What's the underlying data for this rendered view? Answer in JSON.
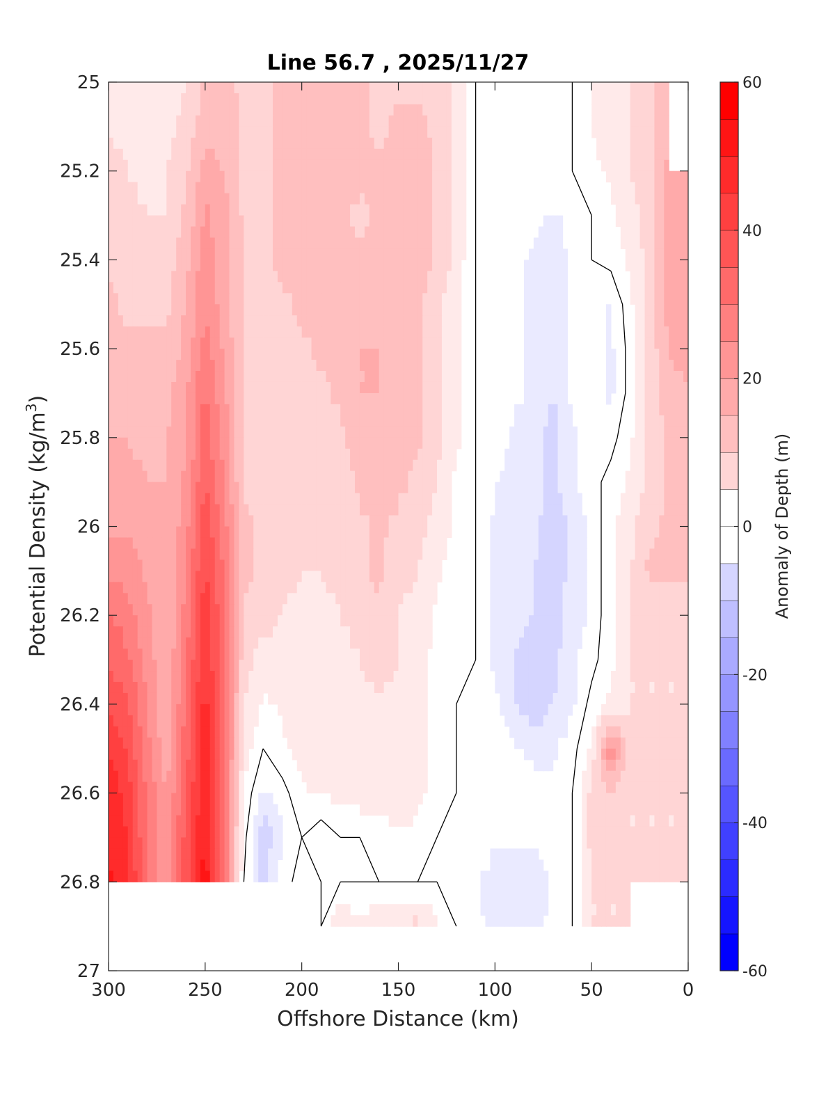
{
  "chart_data": {
    "type": "heatmap",
    "subtype": "filled-contour",
    "title": "Line 56.7 , 2025/11/27",
    "xlabel": "Offshore Distance (km)",
    "ylabel_main": "Potential Density (kg/m",
    "ylabel_sup": "3",
    "ylabel_close": ")",
    "xlim": [
      300,
      0
    ],
    "x_reversed": true,
    "ylim": [
      25,
      27
    ],
    "y_reversed": true,
    "x_ticks": [
      300,
      250,
      200,
      150,
      100,
      50,
      0
    ],
    "x_tick_labels": [
      "300",
      "250",
      "200",
      "150",
      "100",
      "50",
      "0"
    ],
    "y_ticks": [
      25,
      25.2,
      25.4,
      25.6,
      25.8,
      26,
      26.2,
      26.4,
      26.6,
      26.8,
      27
    ],
    "y_tick_labels": [
      "25",
      "25.2",
      "25.4",
      "25.6",
      "25.8",
      "26",
      "26.2",
      "26.4",
      "26.6",
      "26.8",
      "27"
    ],
    "colorbar": {
      "label": "Anomaly of Depth (m)",
      "range": [
        -60,
        60
      ],
      "level_step": 5,
      "ticks": [
        60,
        40,
        20,
        0,
        -20,
        -40,
        -60
      ],
      "tick_labels": [
        "60",
        "40",
        "20",
        "0",
        "-20",
        "-40",
        "-60"
      ],
      "colormap": "blue-white-red",
      "high_color": "#ff0000",
      "low_color": "#0000ff",
      "mid_color": "#ffffff"
    },
    "zero_contour_color": "#000000",
    "x_nodes": [
      300,
      290,
      280,
      270,
      260,
      250,
      240,
      230,
      220,
      210,
      200,
      190,
      180,
      170,
      160,
      150,
      140,
      130,
      120,
      110,
      100,
      90,
      80,
      70,
      60,
      50,
      40,
      30,
      20,
      10,
      0
    ],
    "y_nodes": [
      25,
      25.1,
      25.2,
      25.3,
      25.4,
      25.5,
      25.6,
      25.7,
      25.8,
      25.9,
      26,
      26.1,
      26.2,
      26.3,
      26.4,
      26.5,
      26.6,
      26.7,
      26.8,
      26.9
    ],
    "values": [
      [
        10,
        8,
        6,
        6,
        10,
        16,
        16,
        14,
        14,
        16,
        18,
        18,
        16,
        16,
        14,
        14,
        14,
        14,
        8,
        0,
        0,
        0,
        0,
        0,
        0,
        5,
        8,
        10,
        14,
        20,
        null
      ],
      [
        10,
        8,
        6,
        8,
        12,
        18,
        18,
        14,
        14,
        16,
        18,
        18,
        16,
        16,
        14,
        16,
        16,
        14,
        8,
        0,
        0,
        0,
        0,
        0,
        0,
        5,
        8,
        10,
        14,
        18,
        null
      ],
      [
        12,
        10,
        8,
        10,
        14,
        22,
        20,
        14,
        14,
        16,
        18,
        18,
        18,
        16,
        16,
        18,
        18,
        14,
        8,
        0,
        0,
        0,
        0,
        0,
        0,
        4,
        6,
        10,
        14,
        22,
        24
      ],
      [
        12,
        12,
        10,
        10,
        16,
        26,
        22,
        14,
        14,
        16,
        18,
        18,
        16,
        14,
        16,
        18,
        18,
        14,
        8,
        0,
        0,
        0,
        -3,
        -6,
        -3,
        0,
        4,
        8,
        12,
        22,
        24
      ],
      [
        14,
        14,
        12,
        12,
        18,
        28,
        22,
        14,
        14,
        16,
        18,
        20,
        18,
        16,
        18,
        18,
        18,
        14,
        8,
        0,
        0,
        -4,
        -6,
        -8,
        -4,
        0,
        2,
        6,
        12,
        22,
        24
      ],
      [
        16,
        14,
        14,
        14,
        20,
        30,
        22,
        14,
        14,
        14,
        16,
        18,
        20,
        18,
        18,
        18,
        16,
        12,
        6,
        0,
        0,
        -4,
        -6,
        -8,
        -4,
        -2,
        -6,
        4,
        12,
        22,
        24
      ],
      [
        16,
        16,
        16,
        16,
        22,
        32,
        24,
        14,
        14,
        14,
        14,
        16,
        18,
        20,
        20,
        18,
        16,
        12,
        6,
        0,
        0,
        -4,
        -6,
        -8,
        -4,
        -2,
        -6,
        2,
        12,
        20,
        22
      ],
      [
        18,
        18,
        18,
        18,
        24,
        36,
        26,
        14,
        14,
        14,
        14,
        14,
        16,
        20,
        20,
        18,
        16,
        12,
        6,
        0,
        0,
        -4,
        -6,
        -10,
        -4,
        -2,
        -6,
        2,
        12,
        18,
        20
      ],
      [
        20,
        20,
        18,
        20,
        24,
        38,
        28,
        14,
        14,
        14,
        12,
        12,
        14,
        18,
        20,
        18,
        16,
        12,
        6,
        0,
        -3,
        -6,
        -8,
        -12,
        -6,
        -2,
        -2,
        4,
        12,
        16,
        18
      ],
      [
        22,
        22,
        20,
        20,
        26,
        40,
        30,
        14,
        14,
        14,
        12,
        12,
        12,
        16,
        18,
        16,
        14,
        10,
        4,
        0,
        -5,
        -6,
        -8,
        -12,
        -6,
        -2,
        2,
        6,
        12,
        16,
        16
      ],
      [
        24,
        24,
        22,
        20,
        28,
        44,
        32,
        16,
        14,
        14,
        12,
        12,
        12,
        14,
        16,
        14,
        12,
        8,
        4,
        0,
        -6,
        -6,
        -8,
        -14,
        -8,
        -4,
        4,
        8,
        14,
        16,
        16
      ],
      [
        28,
        28,
        24,
        20,
        30,
        46,
        34,
        16,
        14,
        12,
        10,
        10,
        12,
        14,
        16,
        12,
        10,
        6,
        2,
        0,
        -6,
        -8,
        -10,
        -14,
        -8,
        -4,
        4,
        10,
        16,
        16,
        16
      ],
      [
        36,
        32,
        26,
        20,
        32,
        48,
        36,
        14,
        12,
        10,
        8,
        8,
        10,
        12,
        14,
        10,
        8,
        4,
        2,
        0,
        -6,
        -8,
        -10,
        -12,
        -8,
        -4,
        4,
        10,
        12,
        12,
        12
      ],
      [
        40,
        36,
        28,
        20,
        34,
        50,
        36,
        12,
        8,
        8,
        6,
        8,
        8,
        10,
        12,
        10,
        6,
        4,
        2,
        0,
        -6,
        -10,
        -14,
        -12,
        -6,
        -2,
        4,
        10,
        10,
        10,
        10
      ],
      [
        44,
        40,
        30,
        20,
        36,
        52,
        36,
        10,
        4,
        6,
        6,
        8,
        8,
        8,
        10,
        8,
        6,
        4,
        0,
        0,
        -4,
        -10,
        -14,
        -10,
        -6,
        2,
        6,
        10,
        10,
        10,
        10
      ],
      [
        50,
        44,
        32,
        22,
        38,
        52,
        36,
        8,
        0,
        4,
        8,
        8,
        8,
        8,
        8,
        8,
        6,
        4,
        0,
        0,
        0,
        -4,
        -6,
        -6,
        -2,
        6,
        30,
        10,
        10,
        10,
        10
      ],
      [
        54,
        48,
        34,
        24,
        40,
        54,
        36,
        4,
        -6,
        -2,
        4,
        6,
        6,
        8,
        8,
        8,
        6,
        4,
        0,
        0,
        0,
        -2,
        -4,
        -4,
        0,
        12,
        14,
        10,
        10,
        10,
        10
      ],
      [
        54,
        50,
        34,
        26,
        42,
        56,
        36,
        2,
        -14,
        -6,
        0,
        -4,
        0,
        0,
        2,
        4,
        4,
        0,
        0,
        0,
        -4,
        -4,
        -4,
        -4,
        0,
        12,
        12,
        10,
        10,
        10,
        10
      ],
      [
        56,
        52,
        34,
        26,
        42,
        58,
        36,
        0,
        -12,
        -2,
        2,
        0,
        0,
        0,
        0,
        0,
        0,
        0,
        0,
        -4,
        -8,
        -8,
        -8,
        -4,
        0,
        10,
        10,
        10,
        10,
        10,
        10
      ],
      [
        null,
        null,
        null,
        null,
        null,
        null,
        null,
        null,
        null,
        null,
        2,
        0,
        10,
        6,
        10,
        10,
        12,
        6,
        0,
        -4,
        -6,
        -6,
        -6,
        -4,
        0,
        10,
        10,
        10,
        null,
        null,
        null
      ]
    ]
  }
}
